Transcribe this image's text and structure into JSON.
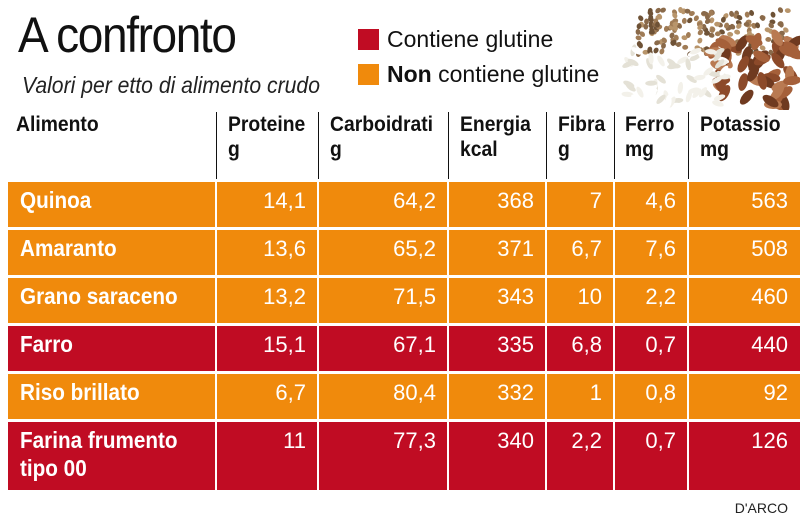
{
  "header": {
    "title": "A confronto",
    "subtitle": "Valori per etto di alimento crudo"
  },
  "legend": {
    "gluten": "Contiene glutine",
    "no_gluten_bold": "Non",
    "no_gluten_rest": " contiene glutine",
    "colors": {
      "gluten": "#c00c23",
      "no_gluten": "#f08a0c"
    }
  },
  "image": {
    "icon": "grains-illustration"
  },
  "table": {
    "columns": [
      {
        "label": "Alimento",
        "unit": ""
      },
      {
        "label": "Proteine",
        "unit": "g"
      },
      {
        "label": "Carboidrati",
        "unit": "g"
      },
      {
        "label": "Energia",
        "unit": "kcal"
      },
      {
        "label": "Fibra",
        "unit": "g"
      },
      {
        "label": "Ferro",
        "unit": "mg"
      },
      {
        "label": "Potassio",
        "unit": "mg"
      }
    ],
    "rows": [
      {
        "name": "Quinoa",
        "gluten": false,
        "values": [
          "14,1",
          "64,2",
          "368",
          "7",
          "4,6",
          "563"
        ]
      },
      {
        "name": "Amaranto",
        "gluten": false,
        "values": [
          "13,6",
          "65,2",
          "371",
          "6,7",
          "7,6",
          "508"
        ]
      },
      {
        "name": "Grano saraceno",
        "gluten": false,
        "values": [
          "13,2",
          "71,5",
          "343",
          "10",
          "2,2",
          "460"
        ]
      },
      {
        "name": "Farro",
        "gluten": true,
        "values": [
          "15,1",
          "67,1",
          "335",
          "6,8",
          "0,7",
          "440"
        ]
      },
      {
        "name": "Riso brillato",
        "gluten": false,
        "values": [
          "6,7",
          "80,4",
          "332",
          "1",
          "0,8",
          "92"
        ]
      },
      {
        "name": "Farina frumento tipo 00",
        "name_line1": "Farina frumento",
        "name_line2": "tipo 00",
        "gluten": true,
        "values": [
          "11",
          "77,3",
          "340",
          "2,2",
          "0,7",
          "126"
        ]
      }
    ]
  },
  "credit": "D'ARCO"
}
